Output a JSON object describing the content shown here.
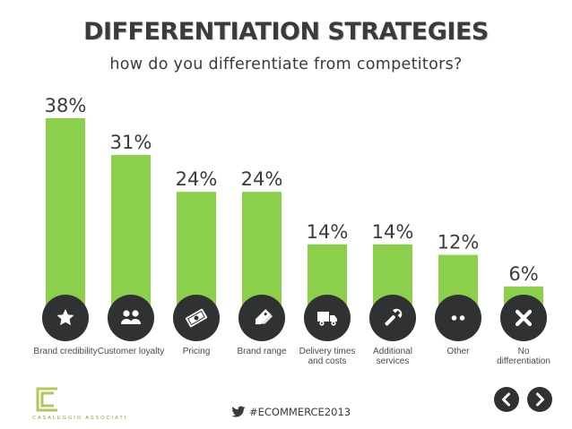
{
  "chart_data": {
    "type": "bar",
    "title": "DIFFERENTIATION STRATEGIES",
    "subtitle": "how do you differentiate from competitors?",
    "categories": [
      [
        "Brand credibility"
      ],
      [
        "Customer loyalty"
      ],
      [
        "Pricing"
      ],
      [
        "Brand range"
      ],
      [
        "Delivery times",
        "and costs"
      ],
      [
        "Additional",
        "services"
      ],
      [
        "Other"
      ],
      [
        "No",
        "differentiation"
      ]
    ],
    "values": [
      38,
      31,
      24,
      24,
      14,
      14,
      12,
      6
    ],
    "value_labels": [
      "38%",
      "31%",
      "24%",
      "24%",
      "14%",
      "14%",
      "12%",
      "6%"
    ],
    "icons": [
      "star-icon",
      "users-icon",
      "banknote-icon",
      "tags-icon",
      "truck-icon",
      "wrench-icon",
      "dots-icon",
      "x-icon"
    ],
    "ylim": [
      0,
      38
    ],
    "grid": false,
    "bar_color": "#8ccf4d",
    "icon_circle_color": "#2f3133"
  },
  "footer": {
    "hashtag": "#ECOMMERCE2013",
    "logo_text": "CASALEGGIO ASSOCIATI",
    "logo_color": "#b5c55e"
  },
  "nav": {
    "prev_icon": "chevron-left-icon",
    "next_icon": "chevron-right-icon"
  }
}
